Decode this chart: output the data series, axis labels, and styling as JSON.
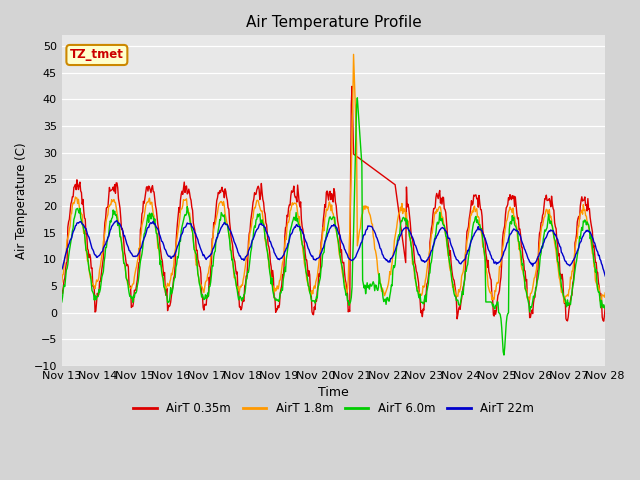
{
  "title": "Air Temperature Profile",
  "xlabel": "Time",
  "ylabel": "Air Temperature (C)",
  "ylim": [
    -10,
    52
  ],
  "yticks": [
    -10,
    -5,
    0,
    5,
    10,
    15,
    20,
    25,
    30,
    35,
    40,
    45,
    50
  ],
  "plot_bg": "#e8e8e8",
  "fig_bg": "#d4d4d4",
  "series_colors": {
    "AirT 0.35m": "#dd0000",
    "AirT 1.8m": "#ff9900",
    "AirT 6.0m": "#00cc00",
    "AirT 22m": "#0000cc"
  },
  "annotation_text": "TZ_tmet",
  "annotation_bg": "#ffffcc",
  "annotation_border": "#cc8800",
  "annotation_text_color": "#cc0000",
  "n_days": 15,
  "start_day": 13,
  "pts_per_day": 48
}
